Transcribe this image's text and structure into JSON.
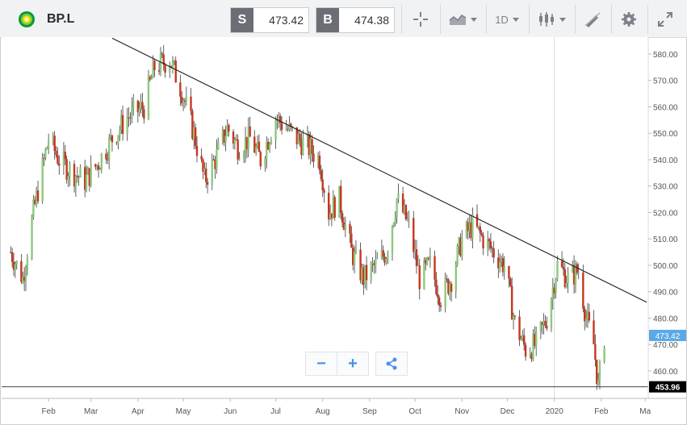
{
  "header": {
    "ticker": "BP.L",
    "logo_icon": "bp-helios-logo",
    "sell_label": "S",
    "sell_price": "473.42",
    "buy_label": "B",
    "buy_price": "474.38",
    "interval": "1D",
    "icons": [
      "crosshair-icon",
      "chart-type-icon",
      "candlestick-icon",
      "draw-tool-icon",
      "gear-icon",
      "expand-icon"
    ]
  },
  "colors": {
    "up": "#8cc97e",
    "down": "#c6361f",
    "price_tag": "#5aa9e6",
    "low_tag": "#000000",
    "trend": "#1f1f1f"
  },
  "chart_data": {
    "type": "candlestick",
    "x_tick_labels": [
      "Feb",
      "Mar",
      "Apr",
      "May",
      "Jun",
      "Jul",
      "Aug",
      "Sep",
      "Oct",
      "Nov",
      "Dec",
      "2020",
      "Feb",
      "Ma"
    ],
    "y_tick_labels": [
      "580.00",
      "570.00",
      "560.00",
      "550.00",
      "540.00",
      "530.00",
      "520.00",
      "510.00",
      "500.00",
      "490.00",
      "480.00",
      "470.00",
      "460.00"
    ],
    "ylim": [
      450,
      585
    ],
    "current_price": "473.42",
    "low_line": "453.96",
    "trendline": {
      "from": {
        "date": "2019-03-15",
        "price": 586
      },
      "to": {
        "date": "2020-03-02",
        "price": 486
      }
    },
    "approx_close_path": [
      {
        "date": "2019-01-07",
        "close": 505
      },
      {
        "date": "2019-01-15",
        "close": 495
      },
      {
        "date": "2019-01-22",
        "close": 520
      },
      {
        "date": "2019-02-01",
        "close": 548
      },
      {
        "date": "2019-02-08",
        "close": 540
      },
      {
        "date": "2019-02-15",
        "close": 536
      },
      {
        "date": "2019-02-25",
        "close": 532
      },
      {
        "date": "2019-03-05",
        "close": 538
      },
      {
        "date": "2019-03-15",
        "close": 548
      },
      {
        "date": "2019-03-25",
        "close": 556
      },
      {
        "date": "2019-04-05",
        "close": 560
      },
      {
        "date": "2019-04-12",
        "close": 575
      },
      {
        "date": "2019-04-22",
        "close": 578
      },
      {
        "date": "2019-04-30",
        "close": 566
      },
      {
        "date": "2019-05-08",
        "close": 550
      },
      {
        "date": "2019-05-15",
        "close": 532
      },
      {
        "date": "2019-05-22",
        "close": 540
      },
      {
        "date": "2019-05-30",
        "close": 552
      },
      {
        "date": "2019-06-06",
        "close": 545
      },
      {
        "date": "2019-06-14",
        "close": 548
      },
      {
        "date": "2019-06-21",
        "close": 540
      },
      {
        "date": "2019-07-01",
        "close": 556
      },
      {
        "date": "2019-07-08",
        "close": 552
      },
      {
        "date": "2019-07-15",
        "close": 548
      },
      {
        "date": "2019-07-22",
        "close": 545
      },
      {
        "date": "2019-07-30",
        "close": 540
      },
      {
        "date": "2019-08-05",
        "close": 520
      },
      {
        "date": "2019-08-12",
        "close": 525
      },
      {
        "date": "2019-08-20",
        "close": 505
      },
      {
        "date": "2019-08-28",
        "close": 495
      },
      {
        "date": "2019-09-05",
        "close": 500
      },
      {
        "date": "2019-09-12",
        "close": 505
      },
      {
        "date": "2019-09-19",
        "close": 525
      },
      {
        "date": "2019-09-27",
        "close": 515
      },
      {
        "date": "2019-10-04",
        "close": 495
      },
      {
        "date": "2019-10-11",
        "close": 500
      },
      {
        "date": "2019-10-18",
        "close": 488
      },
      {
        "date": "2019-10-25",
        "close": 495
      },
      {
        "date": "2019-11-01",
        "close": 510
      },
      {
        "date": "2019-11-08",
        "close": 515
      },
      {
        "date": "2019-11-15",
        "close": 510
      },
      {
        "date": "2019-11-22",
        "close": 505
      },
      {
        "date": "2019-11-29",
        "close": 500
      },
      {
        "date": "2019-12-06",
        "close": 478
      },
      {
        "date": "2019-12-13",
        "close": 468
      },
      {
        "date": "2019-12-20",
        "close": 470
      },
      {
        "date": "2019-12-27",
        "close": 480
      },
      {
        "date": "2020-01-03",
        "close": 500
      },
      {
        "date": "2020-01-10",
        "close": 495
      },
      {
        "date": "2020-01-17",
        "close": 498
      },
      {
        "date": "2020-01-22",
        "close": 480
      },
      {
        "date": "2020-01-27",
        "close": 470
      },
      {
        "date": "2020-01-30",
        "close": 454
      },
      {
        "date": "2020-02-03",
        "close": 473
      }
    ]
  }
}
